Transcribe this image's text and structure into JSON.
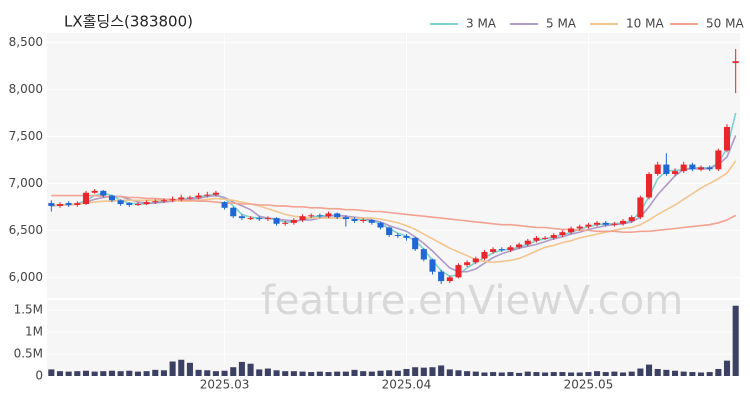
{
  "chart_data": {
    "type": "candlestick",
    "title": "LX홀딩스(383800)",
    "watermark": "feature.enViewV.com",
    "categories": [
      null,
      null,
      null,
      null,
      null,
      null,
      null,
      null,
      null,
      null,
      null,
      null,
      null,
      null,
      null,
      null,
      null,
      null,
      null,
      null,
      "2025.03",
      null,
      null,
      null,
      null,
      null,
      null,
      null,
      null,
      null,
      null,
      null,
      null,
      null,
      null,
      null,
      null,
      null,
      null,
      null,
      null,
      "2025.04",
      null,
      null,
      null,
      null,
      null,
      null,
      null,
      null,
      null,
      null,
      null,
      null,
      null,
      null,
      null,
      null,
      null,
      null,
      null,
      null,
      "2025.05",
      null,
      null,
      null,
      null,
      null,
      null,
      null,
      null,
      null,
      null,
      null,
      null,
      null,
      null,
      null,
      null,
      null
    ],
    "open": [
      6790,
      6760,
      6790,
      6770,
      6780,
      6900,
      6920,
      6870,
      6820,
      6790,
      6770,
      6780,
      6800,
      6810,
      6820,
      6830,
      6850,
      6850,
      6870,
      6880,
      6800,
      6740,
      6650,
      6630,
      6630,
      6620,
      6630,
      6570,
      6580,
      6610,
      6650,
      6660,
      6650,
      6680,
      6640,
      6620,
      6600,
      6610,
      6580,
      6530,
      6450,
      6440,
      6420,
      6300,
      6190,
      6060,
      5960,
      6000,
      6130,
      6160,
      6200,
      6270,
      6300,
      6290,
      6320,
      6350,
      6390,
      6420,
      6420,
      6450,
      6480,
      6520,
      6540,
      6560,
      6580,
      6560,
      6570,
      6600,
      6640,
      6850,
      7100,
      7200,
      7100,
      7130,
      7200,
      7150,
      7170,
      7150,
      7350,
      8280
    ],
    "high": [
      6820,
      6800,
      6810,
      6810,
      6920,
      6940,
      6930,
      6880,
      6830,
      6800,
      6800,
      6820,
      6830,
      6840,
      6860,
      6880,
      6870,
      6900,
      6910,
      6920,
      6810,
      6750,
      6670,
      6650,
      6650,
      6650,
      6640,
      6600,
      6630,
      6670,
      6680,
      6680,
      6700,
      6690,
      6660,
      6640,
      6630,
      6620,
      6590,
      6540,
      6470,
      6460,
      6430,
      6310,
      6200,
      6080,
      6020,
      6150,
      6180,
      6220,
      6290,
      6320,
      6320,
      6340,
      6370,
      6410,
      6440,
      6440,
      6470,
      6500,
      6540,
      6560,
      6580,
      6600,
      6600,
      6590,
      6620,
      6660,
      6870,
      7120,
      7230,
      7320,
      7160,
      7230,
      7220,
      7190,
      7190,
      7370,
      7630,
      8430
    ],
    "low": [
      6700,
      6740,
      6750,
      6750,
      6770,
      6890,
      6850,
      6800,
      6760,
      6750,
      6760,
      6770,
      6780,
      6790,
      6800,
      6810,
      6830,
      6830,
      6850,
      6860,
      6720,
      6630,
      6610,
      6610,
      6600,
      6600,
      6550,
      6550,
      6560,
      6590,
      6630,
      6630,
      6630,
      6620,
      6540,
      6580,
      6580,
      6560,
      6510,
      6430,
      6420,
      6390,
      6280,
      6170,
      6030,
      5930,
      5940,
      5990,
      6110,
      6140,
      6180,
      6250,
      6270,
      6270,
      6300,
      6330,
      6370,
      6400,
      6400,
      6430,
      6460,
      6500,
      6520,
      6540,
      6540,
      6540,
      6550,
      6580,
      6620,
      6830,
      7080,
      7080,
      7080,
      7110,
      7130,
      7130,
      7130,
      7130,
      7330,
      7960
    ],
    "close": [
      6760,
      6780,
      6770,
      6790,
      6900,
      6920,
      6870,
      6820,
      6780,
      6770,
      6780,
      6800,
      6810,
      6820,
      6830,
      6850,
      6850,
      6870,
      6880,
      6900,
      6740,
      6650,
      6630,
      6630,
      6620,
      6630,
      6570,
      6580,
      6610,
      6650,
      6660,
      6650,
      6680,
      6640,
      6620,
      6600,
      6610,
      6580,
      6530,
      6450,
      6440,
      6420,
      6300,
      6190,
      6060,
      5960,
      6000,
      6130,
      6160,
      6200,
      6270,
      6300,
      6290,
      6320,
      6350,
      6390,
      6420,
      6420,
      6450,
      6480,
      6520,
      6540,
      6560,
      6580,
      6560,
      6570,
      6600,
      6640,
      6850,
      7100,
      7200,
      7100,
      7130,
      7200,
      7150,
      7170,
      7150,
      7350,
      7600,
      8300
    ],
    "up_color": "#e8262b",
    "down_color": "#1f66d6",
    "series": [
      {
        "name": "3 MA",
        "color": "#7fd1cf",
        "values": [
          6760,
          6770,
          6770,
          6780,
          6820,
          6870,
          6900,
          6870,
          6820,
          6790,
          6780,
          6780,
          6800,
          6810,
          6820,
          6830,
          6840,
          6860,
          6870,
          6880,
          6840,
          6760,
          6670,
          6640,
          6630,
          6630,
          6610,
          6590,
          6590,
          6610,
          6640,
          6650,
          6660,
          6660,
          6650,
          6620,
          6610,
          6600,
          6570,
          6520,
          6470,
          6440,
          6390,
          6300,
          6180,
          6070,
          6010,
          6030,
          6100,
          6160,
          6210,
          6260,
          6290,
          6300,
          6320,
          6350,
          6390,
          6410,
          6430,
          6450,
          6480,
          6510,
          6540,
          6560,
          6570,
          6570,
          6580,
          6600,
          6700,
          6860,
          7050,
          7130,
          7140,
          7140,
          7160,
          7170,
          7160,
          7220,
          7370,
          7750
        ]
      },
      {
        "name": "5 MA",
        "color": "#ad9bc9",
        "values": [
          6760,
          6770,
          6770,
          6780,
          6800,
          6830,
          6850,
          6860,
          6860,
          6830,
          6800,
          6790,
          6790,
          6800,
          6810,
          6820,
          6830,
          6840,
          6860,
          6870,
          6850,
          6800,
          6760,
          6720,
          6650,
          6630,
          6620,
          6610,
          6600,
          6610,
          6610,
          6630,
          6650,
          6660,
          6650,
          6640,
          6630,
          6610,
          6590,
          6550,
          6520,
          6490,
          6430,
          6360,
          6280,
          6190,
          6100,
          6060,
          6060,
          6090,
          6150,
          6210,
          6250,
          6280,
          6310,
          6330,
          6350,
          6380,
          6410,
          6430,
          6460,
          6480,
          6510,
          6530,
          6550,
          6560,
          6570,
          6590,
          6640,
          6750,
          6880,
          6980,
          7080,
          7150,
          7160,
          7150,
          7160,
          7200,
          7280,
          7510
        ]
      },
      {
        "name": "10 MA",
        "color": "#f2c58e",
        "values": [
          6770,
          6770,
          6770,
          6780,
          6790,
          6800,
          6810,
          6810,
          6820,
          6820,
          6820,
          6820,
          6820,
          6820,
          6820,
          6810,
          6810,
          6820,
          6830,
          6840,
          6830,
          6820,
          6800,
          6780,
          6760,
          6730,
          6700,
          6670,
          6650,
          6640,
          6630,
          6630,
          6630,
          6630,
          6630,
          6630,
          6630,
          6630,
          6620,
          6600,
          6580,
          6550,
          6510,
          6460,
          6410,
          6360,
          6310,
          6270,
          6230,
          6190,
          6170,
          6160,
          6170,
          6180,
          6200,
          6240,
          6280,
          6320,
          6340,
          6370,
          6390,
          6420,
          6440,
          6460,
          6480,
          6500,
          6520,
          6530,
          6560,
          6610,
          6670,
          6720,
          6770,
          6830,
          6890,
          6950,
          7000,
          7050,
          7110,
          7240
        ]
      },
      {
        "name": "50 MA",
        "color": "#f2a291",
        "values": [
          6870,
          6870,
          6870,
          6870,
          6870,
          6870,
          6860,
          6860,
          6860,
          6850,
          6850,
          6840,
          6840,
          6830,
          6830,
          6820,
          6820,
          6810,
          6810,
          6800,
          6790,
          6790,
          6780,
          6780,
          6770,
          6770,
          6760,
          6760,
          6750,
          6750,
          6740,
          6740,
          6730,
          6730,
          6720,
          6720,
          6710,
          6700,
          6700,
          6690,
          6680,
          6670,
          6660,
          6650,
          6640,
          6630,
          6620,
          6610,
          6600,
          6590,
          6580,
          6570,
          6560,
          6560,
          6550,
          6540,
          6530,
          6530,
          6520,
          6510,
          6510,
          6500,
          6500,
          6490,
          6490,
          6490,
          6480,
          6480,
          6490,
          6490,
          6500,
          6510,
          6520,
          6530,
          6540,
          6550,
          6560,
          6580,
          6610,
          6660
        ]
      }
    ],
    "ylim": [
      5780,
      8600
    ],
    "yticks": [
      {
        "value": 6000,
        "label": "6,000"
      },
      {
        "value": 6500,
        "label": "6,500"
      },
      {
        "value": 7000,
        "label": "7,000"
      },
      {
        "value": 7500,
        "label": "7,500"
      },
      {
        "value": 8000,
        "label": "8,000"
      },
      {
        "value": 8500,
        "label": "8,500"
      }
    ],
    "grid": true,
    "volume": {
      "type": "bar",
      "color": "#3c4163",
      "values": [
        150000,
        110000,
        100000,
        110000,
        120000,
        100000,
        110000,
        120000,
        110000,
        120000,
        100000,
        110000,
        140000,
        130000,
        330000,
        370000,
        300000,
        140000,
        130000,
        110000,
        120000,
        200000,
        320000,
        280000,
        150000,
        170000,
        130000,
        110000,
        110000,
        100000,
        90000,
        100000,
        90000,
        100000,
        100000,
        140000,
        110000,
        100000,
        120000,
        130000,
        120000,
        160000,
        200000,
        190000,
        200000,
        240000,
        150000,
        130000,
        110000,
        100000,
        80000,
        90000,
        80000,
        90000,
        70000,
        100000,
        90000,
        80000,
        90000,
        90000,
        80000,
        80000,
        90000,
        110000,
        90000,
        100000,
        80000,
        100000,
        170000,
        260000,
        160000,
        140000,
        120000,
        100000,
        90000,
        80000,
        90000,
        160000,
        350000,
        1600000
      ],
      "ylim": [
        0,
        1730000
      ],
      "yticks": [
        0,
        {
          "value": 500000,
          "label": "0.5M"
        },
        {
          "value": 1000000,
          "label": "1M"
        },
        {
          "value": 1500000,
          "label": "1.5M"
        }
      ]
    }
  }
}
